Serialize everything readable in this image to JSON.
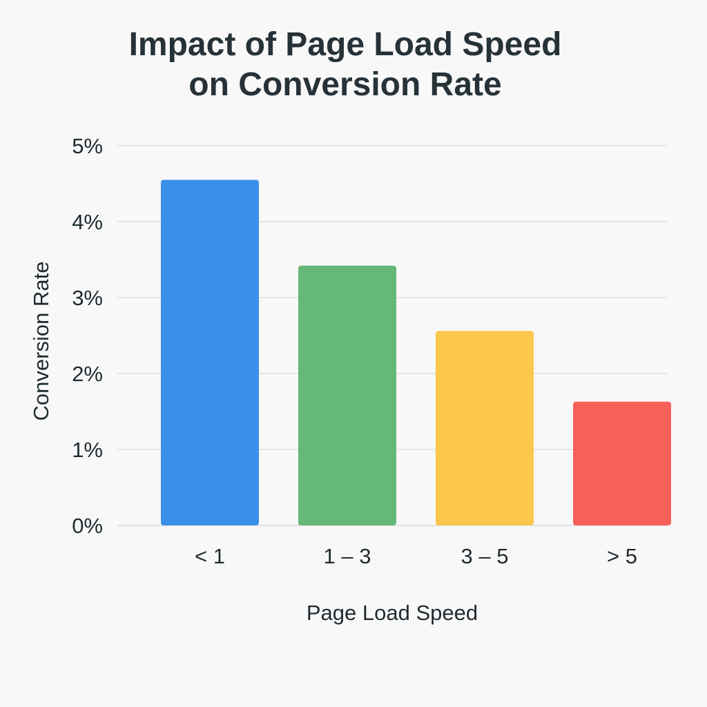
{
  "chart_data": {
    "type": "bar",
    "title_lines": [
      "Impact of Page Load Speed",
      "on Conversion Rate"
    ],
    "categories": [
      "< 1",
      "1 – 3",
      "3 – 5",
      "> 5"
    ],
    "values": [
      4.55,
      3.42,
      2.56,
      1.63
    ],
    "colors": [
      "#3a8fea",
      "#66b878",
      "#fbc74c",
      "#f86059"
    ],
    "xlabel": "Page Load Speed",
    "ylabel": "Conversion Rate",
    "ylim": [
      0,
      5
    ],
    "yticks": [
      "0%",
      "1%",
      "2%",
      "3%",
      "4%",
      "5%"
    ],
    "grid": true,
    "legend": false
  }
}
